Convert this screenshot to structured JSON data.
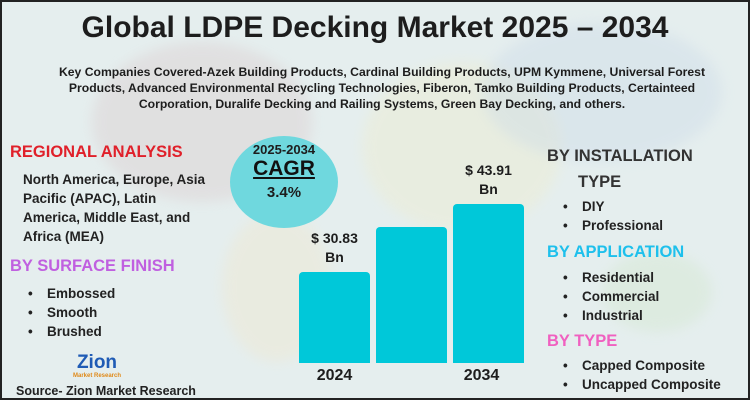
{
  "title": "Global LDPE Decking Market 2025 – 2034",
  "companies": "Key Companies Covered-Azek Building Products, Cardinal Building Products, UPM Kymmene, Universal Forest Products, Advanced Environmental Recycling Technologies, Fiberon, Tamko Building Products, Certainteed Corporation, Duralife Decking and Railing Systems, Green Bay Decking, and others.",
  "regional": {
    "heading": "REGIONAL ANALYSIS",
    "text": "North America, Europe, Asia Pacific (APAC), Latin America, Middle East, and Africa (MEA)"
  },
  "surface_finish": {
    "heading": "BY SURFACE FINISH",
    "items": [
      "Embossed",
      "Smooth",
      "Brushed"
    ]
  },
  "installation": {
    "heading_line1": "BY INSTALLATION",
    "heading_line2": "TYPE",
    "items": [
      "DIY",
      "Professional"
    ]
  },
  "application": {
    "heading": "BY APPLICATION",
    "items": [
      "Residential",
      "Commercial",
      "Industrial"
    ]
  },
  "type": {
    "heading": "BY TYPE",
    "items": [
      "Capped Composite",
      "Uncapped Composite"
    ]
  },
  "cagr": {
    "period": "2025-2034",
    "label": "CAGR",
    "value": "3.4%"
  },
  "source": "Source- Zion Market Research",
  "logo": {
    "name": "Zion",
    "sub": "Market Research"
  },
  "colors": {
    "regional": "#e0202a",
    "surface": "#c060e0",
    "application": "#1ec0ec",
    "type": "#f060c0",
    "bar": "#00c8d9",
    "cagr_circle": "#6fd8de"
  },
  "chart_data": {
    "type": "bar",
    "categories": [
      "2024",
      "",
      "2034"
    ],
    "values": [
      30.83,
      39.5,
      43.91
    ],
    "data_labels": [
      "$ 30.83 Bn",
      "",
      "$ 43.91 Bn"
    ],
    "data_label_lines": [
      [
        "$ 30.83",
        "Bn"
      ],
      [
        "",
        ""
      ],
      [
        "$ 43.91",
        "Bn"
      ]
    ],
    "unit": "USD Billion",
    "grid": false,
    "legend": "none"
  }
}
